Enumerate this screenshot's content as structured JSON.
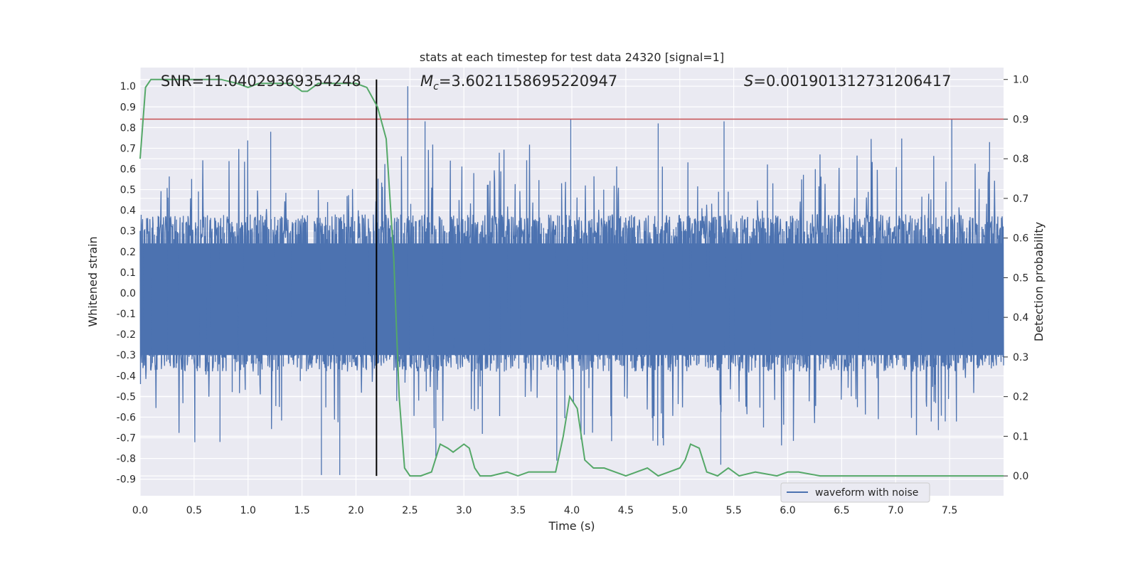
{
  "chart_data": {
    "type": "line",
    "title": "stats at each timestep for test data 24320 [signal=1]",
    "xlabel": "Time (s)",
    "ylabel_left": "Whitened strain",
    "ylabel_right": "Detection probability",
    "xlim": [
      0.0,
      8.0
    ],
    "ylim_left": [
      -0.98,
      1.09
    ],
    "ylim_right": [
      -0.05,
      1.03
    ],
    "x_ticks": [
      "0.0",
      "0.5",
      "1.0",
      "1.5",
      "2.0",
      "2.5",
      "3.0",
      "3.5",
      "4.0",
      "4.5",
      "5.0",
      "5.5",
      "6.0",
      "6.5",
      "7.0",
      "7.5"
    ],
    "y_ticks_left": [
      "1.0",
      "0.9",
      "0.8",
      "0.7",
      "0.6",
      "0.5",
      "0.4",
      "0.3",
      "0.2",
      "0.1",
      "0.0",
      "-0.1",
      "-0.2",
      "-0.3",
      "-0.4",
      "-0.5",
      "-0.6",
      "-0.7",
      "-0.8",
      "-0.9"
    ],
    "y_ticks_right": [
      "1.0",
      "0.9",
      "0.8",
      "0.7",
      "0.6",
      "0.5",
      "0.4",
      "0.3",
      "0.2",
      "0.1",
      "0.0"
    ],
    "annotations": {
      "snr": "SNR=11.04029369354248",
      "mc_symbol": "M",
      "mc_sub": "c",
      "mc_value": "=3.6021158695220947",
      "s_symbol": "S",
      "s_value": "=0.001901312731206417"
    },
    "threshold_right": 0.9,
    "event_time": 2.19,
    "grid": true,
    "legend": {
      "position": "lower-right",
      "entries": [
        "waveform with noise"
      ]
    },
    "colors": {
      "waveform": "#4c72b0",
      "probability": "#55a868",
      "threshold": "#c44e52",
      "event": "#000000",
      "axes_bg": "#eaeaf2"
    },
    "series": [
      {
        "name": "waveform with noise",
        "axis": "left",
        "envelope_note": "dense noise band approx. between -0.3 and 0.3 with spikes",
        "spikes": [
          {
            "x": 2.48,
            "y": 1.0
          },
          {
            "x": 1.68,
            "y": -0.88
          },
          {
            "x": 1.85,
            "y": -0.88
          },
          {
            "x": 7.52,
            "y": 0.84
          },
          {
            "x": 3.99,
            "y": 0.84
          },
          {
            "x": 5.41,
            "y": 0.83
          },
          {
            "x": 2.64,
            "y": 0.83
          },
          {
            "x": 4.8,
            "y": 0.82
          },
          {
            "x": 1.21,
            "y": 0.78
          },
          {
            "x": 5.38,
            "y": -0.83
          },
          {
            "x": 2.74,
            "y": -0.79
          },
          {
            "x": 3.86,
            "y": -0.81
          },
          {
            "x": 0.74,
            "y": -0.72
          },
          {
            "x": 7.87,
            "y": 0.73
          }
        ]
      },
      {
        "name": "",
        "axis": "right",
        "x": [
          0.0,
          0.05,
          0.1,
          0.2,
          0.3,
          0.5,
          0.75,
          0.9,
          1.0,
          1.1,
          1.15,
          1.25,
          1.3,
          1.4,
          1.5,
          1.55,
          1.65,
          1.75,
          1.85,
          2.0,
          2.1,
          2.2,
          2.28,
          2.35,
          2.4,
          2.45,
          2.5,
          2.6,
          2.7,
          2.78,
          2.85,
          2.9,
          2.95,
          3.0,
          3.05,
          3.1,
          3.15,
          3.25,
          3.4,
          3.5,
          3.6,
          3.75,
          3.85,
          3.92,
          3.98,
          4.05,
          4.12,
          4.2,
          4.3,
          4.4,
          4.5,
          4.6,
          4.7,
          4.8,
          4.9,
          5.0,
          5.05,
          5.1,
          5.18,
          5.25,
          5.35,
          5.45,
          5.55,
          5.7,
          5.9,
          6.0,
          6.1,
          6.3,
          6.5,
          7.0,
          7.5,
          8.0
        ],
        "y": [
          0.8,
          0.98,
          1.0,
          1.0,
          1.0,
          1.0,
          1.0,
          0.99,
          0.98,
          0.99,
          0.99,
          0.99,
          0.99,
          0.99,
          0.97,
          0.97,
          0.99,
          0.99,
          0.99,
          0.99,
          0.98,
          0.93,
          0.85,
          0.55,
          0.2,
          0.02,
          0.0,
          0.0,
          0.01,
          0.08,
          0.07,
          0.06,
          0.07,
          0.08,
          0.07,
          0.02,
          0.0,
          0.0,
          0.01,
          0.0,
          0.01,
          0.01,
          0.01,
          0.1,
          0.2,
          0.17,
          0.04,
          0.02,
          0.02,
          0.01,
          0.0,
          0.01,
          0.02,
          0.0,
          0.01,
          0.02,
          0.04,
          0.08,
          0.07,
          0.01,
          0.0,
          0.02,
          0.0,
          0.01,
          0.0,
          0.01,
          0.01,
          0.0,
          0.0,
          0.0,
          0.0,
          0.0
        ]
      }
    ]
  }
}
